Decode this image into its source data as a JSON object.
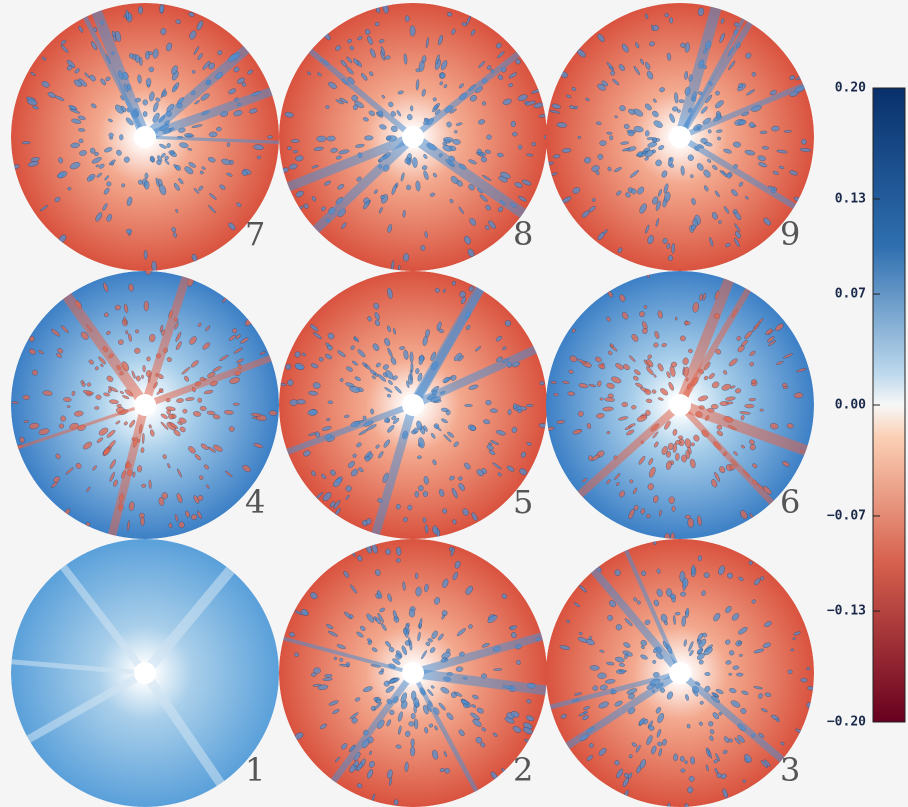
{
  "panels": [
    {
      "label": "7",
      "color": "#d9533f"
    },
    {
      "label": "8",
      "color": "#d9533f"
    },
    {
      "label": "9",
      "color": "#d9533f"
    },
    {
      "label": "4",
      "color": "#3d80c6"
    },
    {
      "label": "5",
      "color": "#d9533f"
    },
    {
      "label": "6",
      "color": "#3d80c6"
    },
    {
      "label": "1",
      "color": "#5aa0da"
    },
    {
      "label": "2",
      "color": "#d9533f"
    },
    {
      "label": "3",
      "color": "#d9533f"
    }
  ],
  "colorbar": {
    "lim": [
      -0.2,
      0.2
    ],
    "ticks": [
      {
        "value": 0.2,
        "label": "0.20"
      },
      0.13,
      0.07,
      {
        "value": 0,
        "label": "0.00"
      },
      {
        "value": -0.07,
        "label": "−0.07"
      },
      {
        "value": -0.13,
        "label": "−0.13"
      },
      {
        "value": -0.2,
        "label": "−0.20"
      }
    ]
  }
}
